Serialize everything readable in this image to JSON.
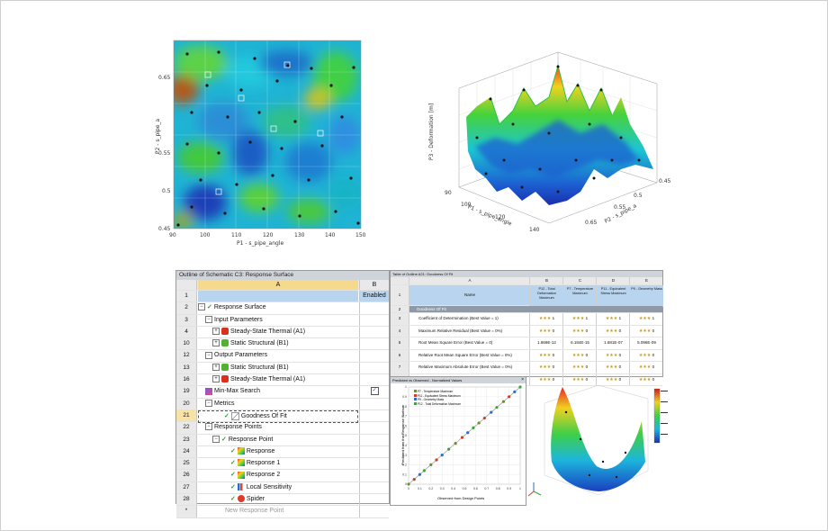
{
  "heatmap": {
    "xlabel": "P1 - s_pipe_angle",
    "ylabel": "P2 - s_pipe_a",
    "x_ticks": [
      "90",
      "100",
      "110",
      "120",
      "130",
      "140",
      "150"
    ],
    "y_ticks": [
      "0.65",
      "0.55",
      "0.5",
      "0.45"
    ]
  },
  "surface3d": {
    "zlabel": "P3 - Deformation [m]",
    "x_axis_label": "P1 - s_pipe_angle",
    "x_ticks": [
      "90",
      "100",
      "120",
      "140"
    ],
    "y_axis_label": "P2 - s_pipe_a",
    "y_ticks": [
      "0.45",
      "0.5",
      "0.55",
      "0.65"
    ]
  },
  "outline": {
    "title": "Outline of Schematic C3: Response Surface",
    "col_a": "A",
    "col_b": "B",
    "rows": [
      {
        "n": "1",
        "label": "",
        "b": "Enabled"
      },
      {
        "n": "2",
        "label": "Response Surface"
      },
      {
        "n": "3",
        "label": "Input Parameters"
      },
      {
        "n": "4",
        "label": "Steady-State Thermal (A1)"
      },
      {
        "n": "10",
        "label": "Static Structural (B1)"
      },
      {
        "n": "12",
        "label": "Output Parameters"
      },
      {
        "n": "13",
        "label": "Static Structural (B1)"
      },
      {
        "n": "16",
        "label": "Steady-State Thermal (A1)"
      },
      {
        "n": "19",
        "label": "Min-Max Search"
      },
      {
        "n": "20",
        "label": "Metrics"
      },
      {
        "n": "21",
        "label": "Goodness Of Fit"
      },
      {
        "n": "22",
        "label": "Response Points"
      },
      {
        "n": "23",
        "label": "Response Point"
      },
      {
        "n": "24",
        "label": "Response"
      },
      {
        "n": "25",
        "label": "Response 1"
      },
      {
        "n": "26",
        "label": "Response 2"
      },
      {
        "n": "27",
        "label": "Local Sensitivity"
      },
      {
        "n": "28",
        "label": "Spider"
      },
      {
        "n": "*",
        "label": "New Response Point"
      }
    ]
  },
  "goodness": {
    "title": "Table of Outline A21: Goodness Of Fit",
    "col_letters": [
      "A",
      "B",
      "C",
      "D",
      "E"
    ],
    "headers": [
      "Name",
      "P12 - Total Deformation Maximum",
      "P7 - Temperature Maximum",
      "P11 - Equivalent Stress Maximum",
      "P9 - Geometry Mass"
    ],
    "rows": [
      {
        "n": "1",
        "name": "",
        "v": [
          "",
          "",
          "",
          ""
        ]
      },
      {
        "n": "2",
        "name": "Goodness Of Fit",
        "v": [
          "",
          "",
          "",
          ""
        ]
      },
      {
        "n": "3",
        "name": "Coefficient of Determination (Best Value = 1)",
        "v": [
          "1",
          "1",
          "1",
          "1"
        ]
      },
      {
        "n": "4",
        "name": "Maximum Relative Residual (Best Value = 0%)",
        "v": [
          "0",
          "0",
          "0",
          "0"
        ]
      },
      {
        "n": "5",
        "name": "Root Mean Square Error (Best Value = 0)",
        "v": [
          "1.869E-12",
          "6.184E-15",
          "1.681E-07",
          "5.096E-09"
        ]
      },
      {
        "n": "6",
        "name": "Relative Root Mean Square Error (Best Value = 0%)",
        "v": [
          "0",
          "0",
          "0",
          "0"
        ]
      },
      {
        "n": "7",
        "name": "Relative Maximum Absolute Error (Best Value = 0%)",
        "v": [
          "0",
          "0",
          "0",
          "0"
        ]
      },
      {
        "n": "8",
        "name": "Relative Average Absolute Error (Best Value = 0%)",
        "v": [
          "0",
          "0",
          "0",
          "0"
        ]
      }
    ]
  },
  "predicted": {
    "title": "Predicted vs Observed - Normalized Values",
    "xlabel": "Observed from Design Points",
    "ylabel": "Predicted from the Response Surface",
    "legend": [
      "P7 - Temperature Maximum",
      "P11 - Equivalent Stress Maximum",
      "P9 - Geometry Mass",
      "P12 - Total Deformation Maximum"
    ],
    "ticks": [
      "0",
      "0.1",
      "0.2",
      "0.3",
      "0.4",
      "0.5",
      "0.6",
      "0.7",
      "0.8",
      "0.9",
      "1"
    ],
    "colors": [
      "#6a8f2c",
      "#d13b2a",
      "#2f6bc9",
      "#3aa33a"
    ]
  },
  "colors": {
    "selected_row": "#f7e3a3",
    "header_blue": "#b9d4ef",
    "check_green": "#2e9b2e"
  }
}
